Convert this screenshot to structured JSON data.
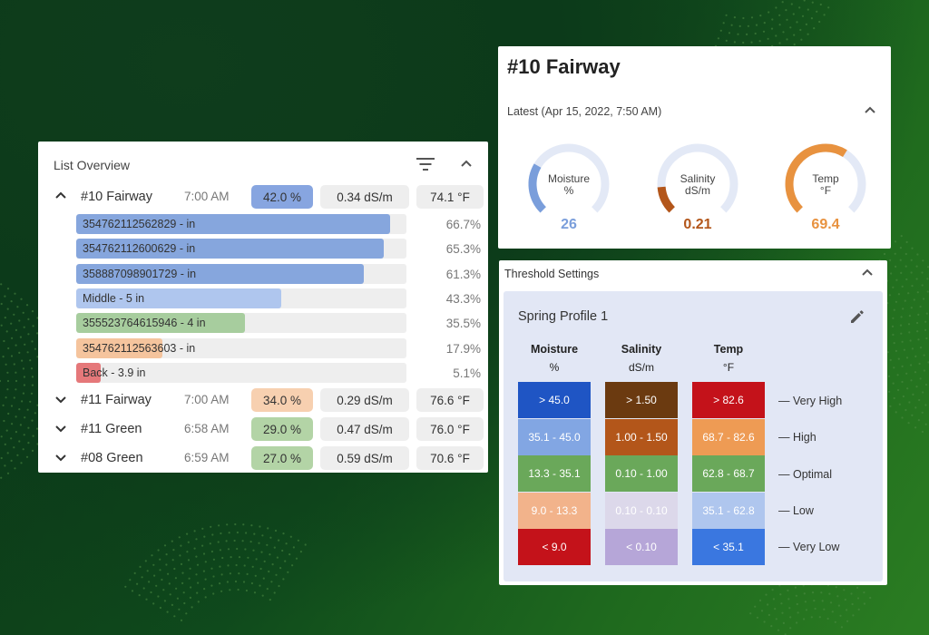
{
  "colors": {
    "moisture": "#7a9edb",
    "salinity": "#b3561a",
    "temp": "#e8923f"
  },
  "list_overview": {
    "title": "List Overview",
    "icons": [
      "filter-icon",
      "chevron-up-icon"
    ],
    "sites": [
      {
        "name": "#10 Fairway",
        "time": "7:00 AM",
        "expanded": true,
        "moisture": "42.0 %",
        "moisture_color": "#87a5e0",
        "salinity": "0.34 dS/m",
        "temp": "74.1 °F",
        "sensors": [
          {
            "label": "354762112562829 - in",
            "pct": "66.7%",
            "level": 0.95,
            "color": "#86a6dd"
          },
          {
            "label": "354762112600629 - in",
            "pct": "65.3%",
            "level": 0.93,
            "color": "#86a6dd"
          },
          {
            "label": "358887098901729 - in",
            "pct": "61.3%",
            "level": 0.87,
            "color": "#86a6dd"
          },
          {
            "label": "Middle - 5 in",
            "pct": "43.3%",
            "level": 0.62,
            "color": "#afc6ee"
          },
          {
            "label": "355523764615946 - 4 in",
            "pct": "35.5%",
            "level": 0.51,
            "color": "#a7cd9e"
          },
          {
            "label": "354762112563603 - in",
            "pct": "17.9%",
            "level": 0.26,
            "color": "#f5c49d"
          },
          {
            "label": "Back - 3.9 in",
            "pct": "5.1%",
            "level": 0.075,
            "color": "#e5787a"
          }
        ]
      },
      {
        "name": "#11 Fairway",
        "time": "7:00 AM",
        "expanded": false,
        "moisture": "34.0 %",
        "moisture_color": "#f7d0b0",
        "salinity": "0.29 dS/m",
        "temp": "76.6 °F"
      },
      {
        "name": "#11 Green",
        "time": "6:58 AM",
        "expanded": false,
        "moisture": "29.0 %",
        "moisture_color": "#b3d4a6",
        "salinity": "0.47 dS/m",
        "temp": "76.0 °F"
      },
      {
        "name": "#08 Green",
        "time": "6:59 AM",
        "expanded": false,
        "moisture": "27.0 %",
        "moisture_color": "#b3d4a6",
        "salinity": "0.59 dS/m",
        "temp": "70.6 °F"
      }
    ]
  },
  "latest": {
    "title": "#10 Fairway",
    "subtitle": "Latest (Apr 15, 2022, 7:50 AM)",
    "gauges": [
      {
        "label1": "Moisture",
        "label2": "%",
        "value": "26",
        "level": 0.28,
        "color": "#7a9edb"
      },
      {
        "label1": "Salinity",
        "label2": "dS/m",
        "value": "0.21",
        "level": 0.15,
        "color": "#b3561a"
      },
      {
        "label1": "Temp",
        "label2": "°F",
        "value": "69.4",
        "level": 0.62,
        "color": "#e8923f"
      }
    ]
  },
  "threshold": {
    "title": "Threshold Settings",
    "profile": "Spring Profile 1",
    "columns": [
      {
        "name": "Moisture",
        "unit": "%",
        "cells": [
          {
            "text": "> 45.0",
            "color": "#1f55c4"
          },
          {
            "text": "35.1 - 45.0",
            "color": "#82a6e3"
          },
          {
            "text": "13.3 - 35.1",
            "color": "#6aa85a"
          },
          {
            "text": "9.0 - 13.3",
            "color": "#f2b38b"
          },
          {
            "text": "< 9.0",
            "color": "#c4121a"
          }
        ]
      },
      {
        "name": "Salinity",
        "unit": "dS/m",
        "cells": [
          {
            "text": "> 1.50",
            "color": "#6b3a10"
          },
          {
            "text": "1.00 - 1.50",
            "color": "#b3561a"
          },
          {
            "text": "0.10 - 1.00",
            "color": "#6aa85a"
          },
          {
            "text": "0.10 - 0.10",
            "color": "#dcd8ea"
          },
          {
            "text": "< 0.10",
            "color": "#b6a6d8"
          }
        ]
      },
      {
        "name": "Temp",
        "unit": "°F",
        "cells": [
          {
            "text": "> 82.6",
            "color": "#c4121a"
          },
          {
            "text": "68.7 - 82.6",
            "color": "#ee9b54"
          },
          {
            "text": "62.8 - 68.7",
            "color": "#6aa85a"
          },
          {
            "text": "35.1 - 62.8",
            "color": "#afc6ee"
          },
          {
            "text": "< 35.1",
            "color": "#3a77e0"
          }
        ]
      }
    ],
    "levels": [
      "— Very High",
      "— High",
      "— Optimal",
      "— Low",
      "— Very Low"
    ]
  }
}
